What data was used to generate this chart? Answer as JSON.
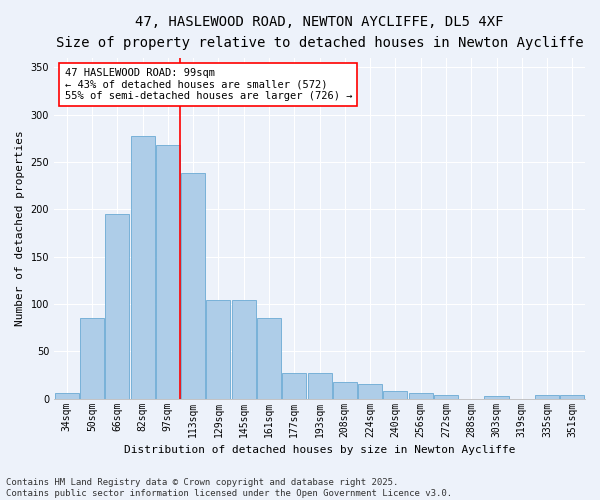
{
  "title": "47, HASLEWOOD ROAD, NEWTON AYCLIFFE, DL5 4XF",
  "subtitle": "Size of property relative to detached houses in Newton Aycliffe",
  "xlabel": "Distribution of detached houses by size in Newton Aycliffe",
  "ylabel": "Number of detached properties",
  "categories": [
    "34sqm",
    "50sqm",
    "66sqm",
    "82sqm",
    "97sqm",
    "113sqm",
    "129sqm",
    "145sqm",
    "161sqm",
    "177sqm",
    "193sqm",
    "208sqm",
    "224sqm",
    "240sqm",
    "256sqm",
    "272sqm",
    "288sqm",
    "303sqm",
    "319sqm",
    "335sqm",
    "351sqm"
  ],
  "values": [
    6,
    85,
    195,
    277,
    268,
    238,
    104,
    104,
    85,
    27,
    27,
    18,
    15,
    8,
    6,
    4,
    0,
    3,
    0,
    4,
    4
  ],
  "bar_color": "#aecde8",
  "bar_edge_color": "#6aaad4",
  "red_line_index": 4,
  "annotation_title": "47 HASLEWOOD ROAD: 99sqm",
  "annotation_line1": "← 43% of detached houses are smaller (572)",
  "annotation_line2": "55% of semi-detached houses are larger (726) →",
  "ylim": [
    0,
    360
  ],
  "yticks": [
    0,
    50,
    100,
    150,
    200,
    250,
    300,
    350
  ],
  "footer_line1": "Contains HM Land Registry data © Crown copyright and database right 2025.",
  "footer_line2": "Contains public sector information licensed under the Open Government Licence v3.0.",
  "background_color": "#edf2fa",
  "plot_background": "#edf2fa",
  "grid_color": "#ffffff",
  "title_fontsize": 10,
  "subtitle_fontsize": 9,
  "axis_label_fontsize": 8,
  "tick_fontsize": 7,
  "annotation_fontsize": 7.5,
  "footer_fontsize": 6.5
}
